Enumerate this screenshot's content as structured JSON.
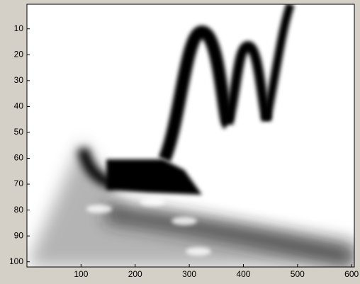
{
  "chart_data": {
    "type": "image",
    "colormap": "gray",
    "reversed_y": true,
    "xlim": [
      0,
      605
    ],
    "xticks": [
      100,
      200,
      300,
      400,
      500,
      600
    ],
    "ylim": [
      0.5,
      102
    ],
    "yticks": [
      10,
      20,
      30,
      40,
      50,
      60,
      70,
      80,
      90,
      100
    ]
  }
}
